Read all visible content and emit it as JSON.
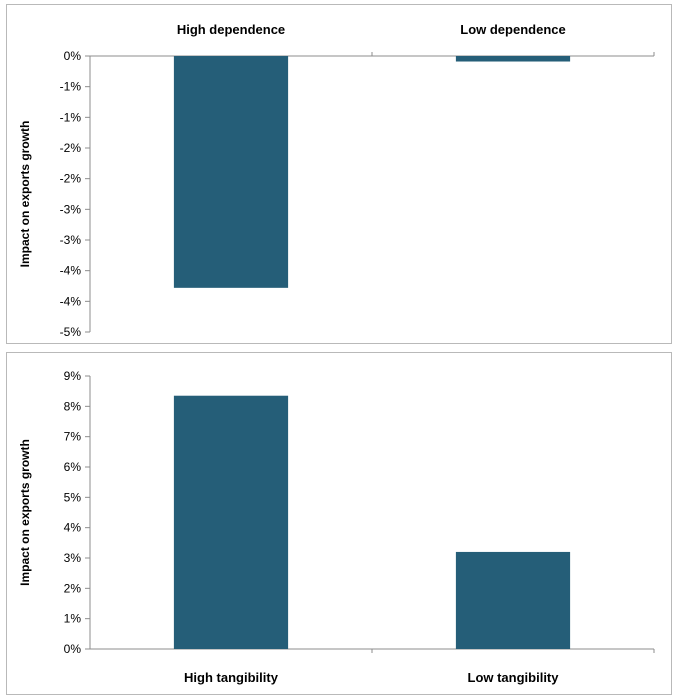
{
  "chart_data": [
    {
      "type": "bar",
      "categories": [
        "High dependence",
        "Low dependence"
      ],
      "values": [
        -4.2,
        -0.1
      ],
      "ylabel": "Impact on exports growth",
      "ylim": [
        -5,
        0
      ],
      "tick_labels": [
        "0%",
        "-1%",
        "-1%",
        "-2%",
        "-2%",
        "-3%",
        "-3%",
        "-4%",
        "-4%",
        "-5%"
      ],
      "category_axis": "top",
      "color": "#255e78",
      "grid": false
    },
    {
      "type": "bar",
      "categories": [
        "High tangibility",
        "Low tangibility"
      ],
      "values": [
        8.35,
        3.2
      ],
      "ylabel": "Impact on exports growth",
      "ylim": [
        0,
        9
      ],
      "tick_labels": [
        "0%",
        "1%",
        "2%",
        "3%",
        "4%",
        "5%",
        "6%",
        "7%",
        "8%",
        "9%"
      ],
      "category_axis": "bottom",
      "color": "#255e78",
      "grid": false
    }
  ]
}
